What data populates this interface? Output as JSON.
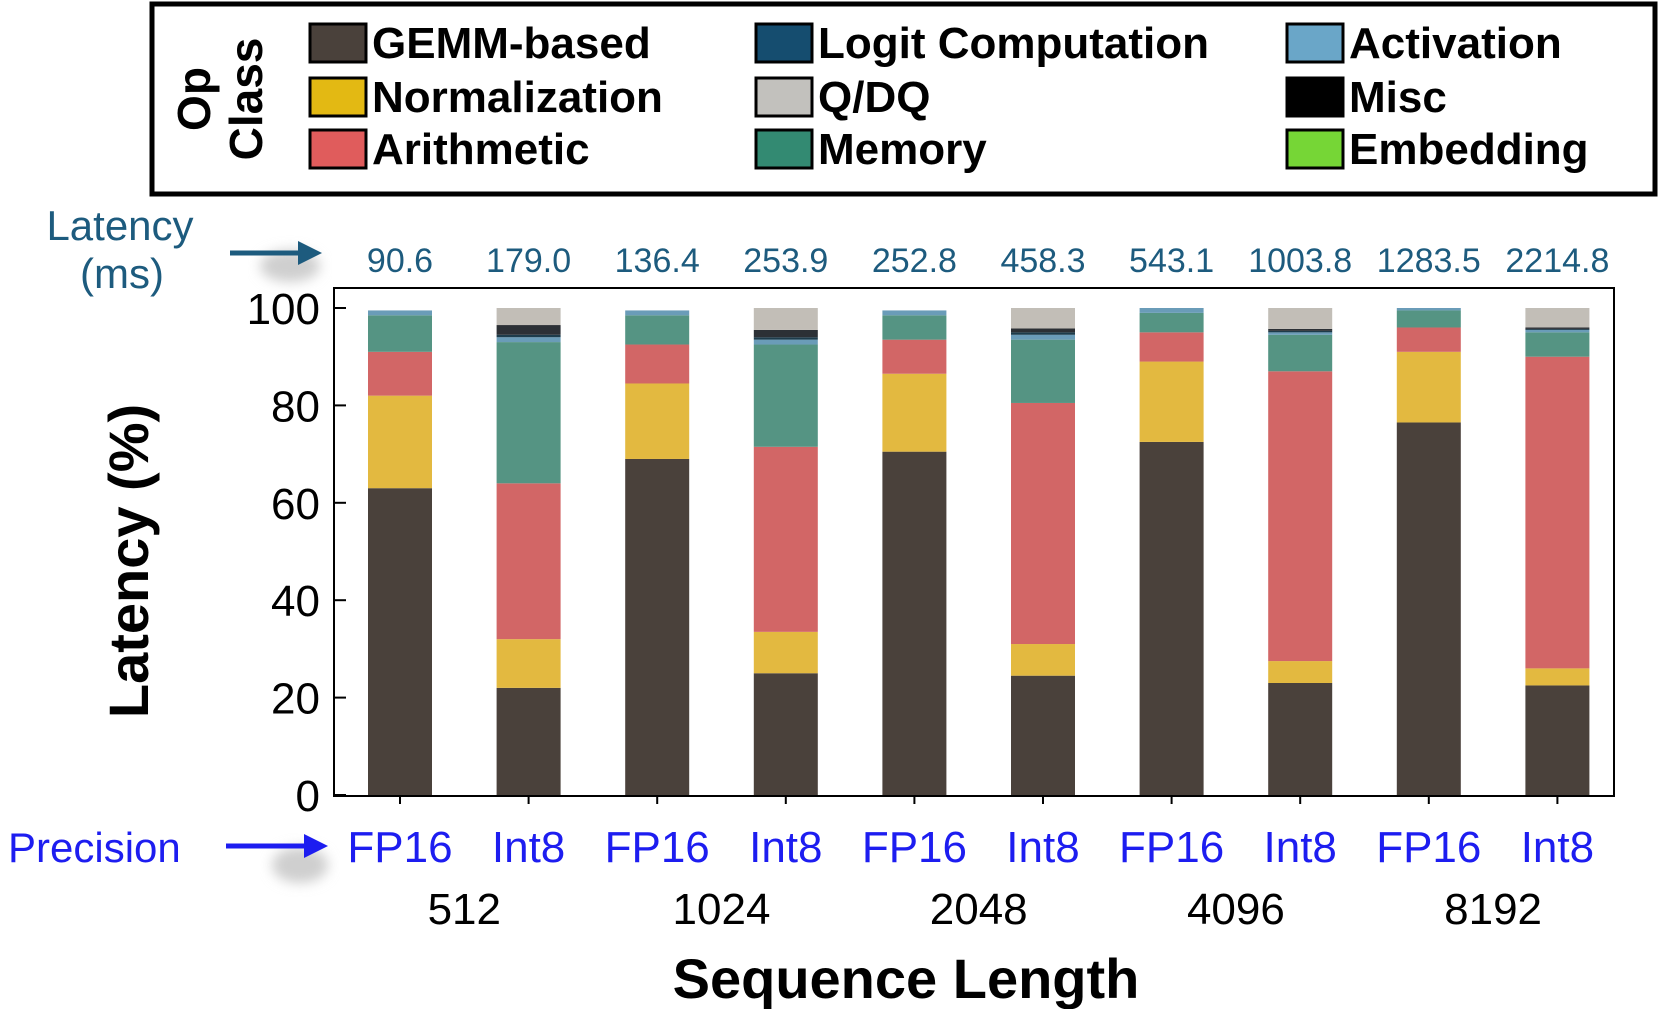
{
  "chart_data": {
    "type": "bar",
    "stacked": true,
    "legend_title": [
      "Op",
      "Class"
    ],
    "legend_position": "top",
    "ylabel": "Latency (%)",
    "xlabel": "Sequence Length",
    "ylim": [
      0,
      100
    ],
    "yticks": [
      0,
      20,
      40,
      60,
      80,
      100
    ],
    "latency_label": [
      "Latency",
      "(ms)"
    ],
    "precision_label": "Precision",
    "categories": [
      "FP16",
      "Int8",
      "FP16",
      "Int8",
      "FP16",
      "Int8",
      "FP16",
      "Int8",
      "FP16",
      "Int8"
    ],
    "sequence_lengths": [
      "512",
      "1024",
      "2048",
      "4096",
      "8192"
    ],
    "latency_ms": [
      "90.6",
      "179.0",
      "136.4",
      "253.9",
      "252.8",
      "458.3",
      "543.1",
      "1003.8",
      "1283.5",
      "2214.8"
    ],
    "series": [
      {
        "name": "GEMM-based",
        "color": "#4a413b",
        "values": [
          63,
          22,
          69,
          25,
          70.5,
          24.5,
          72.5,
          23,
          76.5,
          22.5
        ]
      },
      {
        "name": "Normalization",
        "color": "#e3b940",
        "values": [
          19,
          10,
          15.5,
          8.5,
          16,
          6.5,
          16.5,
          4.5,
          14.5,
          3.5
        ]
      },
      {
        "name": "Arithmetic",
        "color": "#d26666",
        "values": [
          9,
          32,
          8,
          38,
          7,
          49.5,
          6,
          59.5,
          5,
          64
        ]
      },
      {
        "name": "Memory",
        "color": "#559483",
        "values": [
          7.5,
          29,
          6,
          21,
          5,
          13,
          4,
          7.5,
          3.5,
          5
        ]
      },
      {
        "name": "Activation",
        "color": "#6a9cb8",
        "values": [
          1,
          1,
          1,
          1,
          1,
          1,
          1,
          0.5,
          0.5,
          0.5
        ]
      },
      {
        "name": "Logit Computation",
        "color": "#1d3c4b",
        "values": [
          0,
          0.5,
          0,
          0.5,
          0,
          0.5,
          0,
          0.3,
          0,
          0.2
        ]
      },
      {
        "name": "Misc",
        "color": "#2c3035",
        "values": [
          0,
          2,
          0,
          1.5,
          0,
          0.8,
          0,
          0.4,
          0,
          0.3
        ]
      },
      {
        "name": "Q/DQ",
        "color": "#c2beb7",
        "values": [
          0,
          3.5,
          0,
          4.5,
          0,
          4.2,
          0,
          4.3,
          0,
          4
        ]
      },
      {
        "name": "Embedding",
        "color": "#74d23b",
        "values": [
          0,
          0,
          0,
          0,
          0,
          0,
          0,
          0,
          0,
          0
        ]
      }
    ],
    "legend": [
      {
        "name": "GEMM-based",
        "color": "#4a413b"
      },
      {
        "name": "Normalization",
        "color": "#e3b913"
      },
      {
        "name": "Arithmetic",
        "color": "#e05c5c"
      },
      {
        "name": "Logit Computation",
        "color": "#154d6f"
      },
      {
        "name": "Q/DQ",
        "color": "#c2c1bd"
      },
      {
        "name": "Memory",
        "color": "#338a72"
      },
      {
        "name": "Activation",
        "color": "#6aa6c8"
      },
      {
        "name": "Misc",
        "color": "#000000"
      },
      {
        "name": "Embedding",
        "color": "#76d636"
      }
    ]
  }
}
